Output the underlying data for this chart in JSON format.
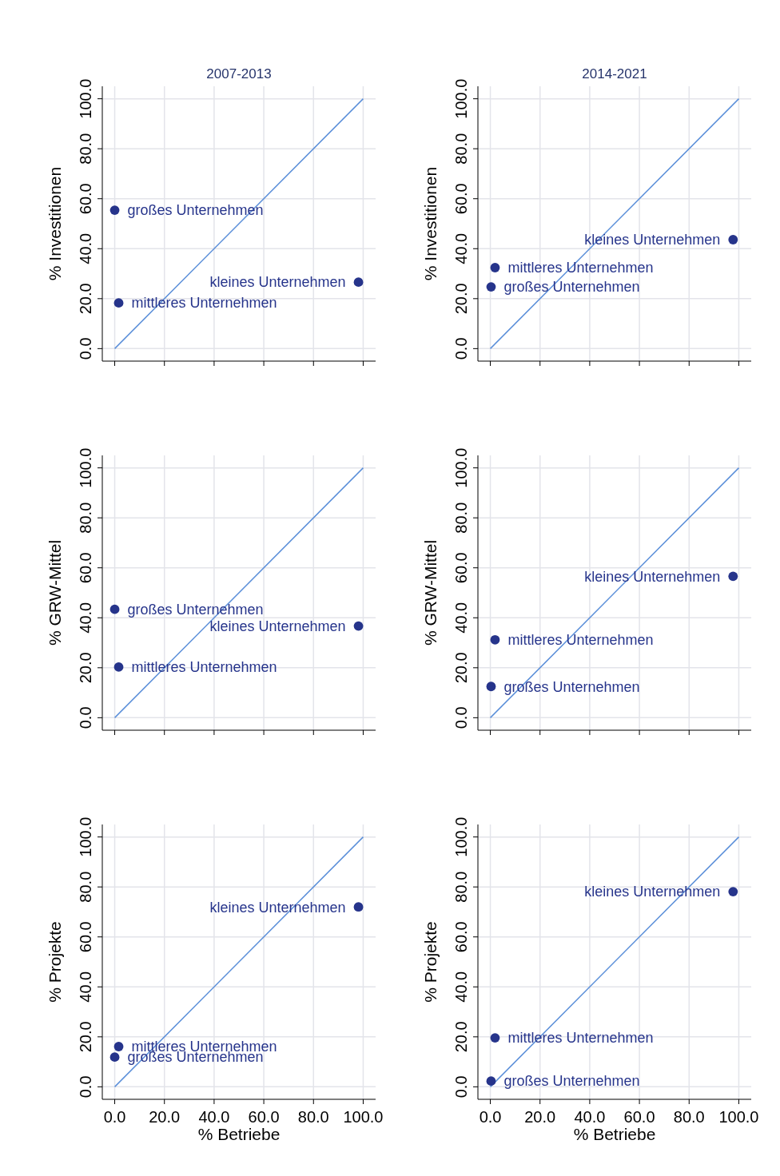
{
  "chart_data": [
    {
      "type": "scatter",
      "title": "2007-2013",
      "ylabel": "% Investitionen",
      "xlim": [
        -5,
        105
      ],
      "ylim": [
        -5,
        105
      ],
      "xticks": [
        {
          "value": 0,
          "label": null
        },
        {
          "value": 20,
          "label": null
        },
        {
          "value": 40,
          "label": null
        },
        {
          "value": 60,
          "label": null
        },
        {
          "value": 80,
          "label": null
        },
        {
          "value": 100,
          "label": null
        }
      ],
      "yticks": [
        {
          "value": 0,
          "label": "0.0"
        },
        {
          "value": 20,
          "label": "20.0"
        },
        {
          "value": 40,
          "label": "40.0"
        },
        {
          "value": 60,
          "label": "60.0"
        },
        {
          "value": 80,
          "label": "80.0"
        },
        {
          "value": 100,
          "label": "100.0"
        }
      ],
      "grid": true,
      "tick_labels": "y",
      "marker": "circle",
      "series": [
        {
          "type": "line",
          "color": "#5b8fd9",
          "x": [
            0,
            100
          ],
          "values": [
            0,
            100
          ],
          "marker": "none"
        },
        {
          "type": "scatter",
          "color": "#26348b",
          "x": [
            0,
            98.1,
            1.6
          ],
          "values": [
            55.4,
            26.6,
            18.3
          ]
        }
      ],
      "annotations": [
        {
          "text": "großes Unternehmen",
          "x": 0,
          "y": 55.4
        },
        {
          "text": "kleines Unternehmen",
          "x": 98.1,
          "y": 26.6
        },
        {
          "text": "mittleres Unternehmen",
          "x": 1.6,
          "y": 18.3
        }
      ]
    },
    {
      "type": "scatter",
      "title": "2014-2021",
      "ylabel": "% Investitionen",
      "xlim": [
        -5,
        105
      ],
      "ylim": [
        -5,
        105
      ],
      "xticks": [
        {
          "value": 0,
          "label": null
        },
        {
          "value": 20,
          "label": null
        },
        {
          "value": 40,
          "label": null
        },
        {
          "value": 60,
          "label": null
        },
        {
          "value": 80,
          "label": null
        },
        {
          "value": 100,
          "label": null
        }
      ],
      "yticks": [
        {
          "value": 0,
          "label": "0.0"
        },
        {
          "value": 20,
          "label": "20.0"
        },
        {
          "value": 40,
          "label": "40.0"
        },
        {
          "value": 60,
          "label": "60.0"
        },
        {
          "value": 80,
          "label": "80.0"
        },
        {
          "value": 100,
          "label": "100.0"
        }
      ],
      "grid": true,
      "tick_labels": "y",
      "marker": "circle",
      "series": [
        {
          "type": "line",
          "color": "#5b8fd9",
          "x": [
            0,
            100
          ],
          "values": [
            0,
            100
          ],
          "marker": "none"
        },
        {
          "type": "scatter",
          "color": "#26348b",
          "x": [
            97.7,
            1.9,
            0.3
          ],
          "values": [
            43.6,
            32.4,
            24.7
          ]
        }
      ],
      "annotations": [
        {
          "text": "kleines Unternehmen",
          "x": 97.7,
          "y": 43.6
        },
        {
          "text": "mittleres Unternehmen",
          "x": 1.9,
          "y": 32.4
        },
        {
          "text": "großes Unternehmen",
          "x": 0.3,
          "y": 24.7
        }
      ]
    },
    {
      "type": "scatter",
      "ylabel": "% GRW-Mittel",
      "xlim": [
        -5,
        105
      ],
      "ylim": [
        -5,
        105
      ],
      "xticks": [
        {
          "value": 0,
          "label": null
        },
        {
          "value": 20,
          "label": null
        },
        {
          "value": 40,
          "label": null
        },
        {
          "value": 60,
          "label": null
        },
        {
          "value": 80,
          "label": null
        },
        {
          "value": 100,
          "label": null
        }
      ],
      "yticks": [
        {
          "value": 0,
          "label": "0.0"
        },
        {
          "value": 20,
          "label": "20.0"
        },
        {
          "value": 40,
          "label": "40.0"
        },
        {
          "value": 60,
          "label": "60.0"
        },
        {
          "value": 80,
          "label": "80.0"
        },
        {
          "value": 100,
          "label": "100.0"
        }
      ],
      "grid": true,
      "tick_labels": "y",
      "marker": "circle",
      "series": [
        {
          "type": "line",
          "color": "#5b8fd9",
          "x": [
            0,
            100
          ],
          "values": [
            0,
            100
          ],
          "marker": "none"
        },
        {
          "type": "scatter",
          "color": "#26348b",
          "x": [
            0,
            98.1,
            1.6
          ],
          "values": [
            43.4,
            36.7,
            20.3
          ]
        }
      ],
      "annotations": [
        {
          "text": "großes Unternehmen",
          "x": 0,
          "y": 43.4
        },
        {
          "text": "kleines Unternehmen",
          "x": 98.1,
          "y": 36.7
        },
        {
          "text": "mittleres Unternehmen",
          "x": 1.6,
          "y": 20.3
        }
      ]
    },
    {
      "type": "scatter",
      "ylabel": "% GRW-Mittel",
      "xlim": [
        -5,
        105
      ],
      "ylim": [
        -5,
        105
      ],
      "xticks": [
        {
          "value": 0,
          "label": null
        },
        {
          "value": 20,
          "label": null
        },
        {
          "value": 40,
          "label": null
        },
        {
          "value": 60,
          "label": null
        },
        {
          "value": 80,
          "label": null
        },
        {
          "value": 100,
          "label": null
        }
      ],
      "yticks": [
        {
          "value": 0,
          "label": "0.0"
        },
        {
          "value": 20,
          "label": "20.0"
        },
        {
          "value": 40,
          "label": "40.0"
        },
        {
          "value": 60,
          "label": "60.0"
        },
        {
          "value": 80,
          "label": "80.0"
        },
        {
          "value": 100,
          "label": "100.0"
        }
      ],
      "grid": true,
      "tick_labels": "y",
      "marker": "circle",
      "series": [
        {
          "type": "line",
          "color": "#5b8fd9",
          "x": [
            0,
            100
          ],
          "values": [
            0,
            100
          ],
          "marker": "none"
        },
        {
          "type": "scatter",
          "color": "#26348b",
          "x": [
            97.7,
            1.9,
            0.3
          ],
          "values": [
            56.6,
            31.2,
            12.5
          ]
        }
      ],
      "annotations": [
        {
          "text": "kleines Unternehmen",
          "x": 97.7,
          "y": 56.6
        },
        {
          "text": "mittleres Unternehmen",
          "x": 1.9,
          "y": 31.2
        },
        {
          "text": "großes Unternehmen",
          "x": 0.3,
          "y": 12.5
        }
      ]
    },
    {
      "type": "scatter",
      "ylabel": "% Projekte",
      "xlabel": "% Betriebe",
      "xlim": [
        -5,
        105
      ],
      "ylim": [
        -5,
        105
      ],
      "xticks": [
        {
          "value": 0,
          "label": "0.0"
        },
        {
          "value": 20,
          "label": "20.0"
        },
        {
          "value": 40,
          "label": "40.0"
        },
        {
          "value": 60,
          "label": "60.0"
        },
        {
          "value": 80,
          "label": "80.0"
        },
        {
          "value": 100,
          "label": "100.0"
        }
      ],
      "yticks": [
        {
          "value": 0,
          "label": "0.0"
        },
        {
          "value": 20,
          "label": "20.0"
        },
        {
          "value": 40,
          "label": "40.0"
        },
        {
          "value": 60,
          "label": "60.0"
        },
        {
          "value": 80,
          "label": "80.0"
        },
        {
          "value": 100,
          "label": "100.0"
        }
      ],
      "grid": true,
      "marker": "circle",
      "series": [
        {
          "type": "line",
          "color": "#5b8fd9",
          "x": [
            0,
            100
          ],
          "values": [
            0,
            100
          ],
          "marker": "none"
        },
        {
          "type": "scatter",
          "color": "#26348b",
          "x": [
            98.1,
            1.6,
            0
          ],
          "values": [
            72.0,
            16.1,
            11.9
          ]
        }
      ],
      "annotations": [
        {
          "text": "kleines Unternehmen",
          "x": 98.1,
          "y": 72.0
        },
        {
          "text": "mittleres Unternehmen",
          "x": 1.6,
          "y": 16.1
        },
        {
          "text": "großes Unternehmen",
          "x": 0,
          "y": 11.9
        }
      ]
    },
    {
      "type": "scatter",
      "ylabel": "% Projekte",
      "xlabel": "% Betriebe",
      "xlim": [
        -5,
        105
      ],
      "ylim": [
        -5,
        105
      ],
      "xticks": [
        {
          "value": 0,
          "label": "0.0"
        },
        {
          "value": 20,
          "label": "20.0"
        },
        {
          "value": 40,
          "label": "40.0"
        },
        {
          "value": 60,
          "label": "60.0"
        },
        {
          "value": 80,
          "label": "80.0"
        },
        {
          "value": 100,
          "label": "100.0"
        }
      ],
      "yticks": [
        {
          "value": 0,
          "label": "0.0"
        },
        {
          "value": 20,
          "label": "20.0"
        },
        {
          "value": 40,
          "label": "40.0"
        },
        {
          "value": 60,
          "label": "60.0"
        },
        {
          "value": 80,
          "label": "80.0"
        },
        {
          "value": 100,
          "label": "100.0"
        }
      ],
      "grid": true,
      "marker": "circle",
      "series": [
        {
          "type": "line",
          "color": "#5b8fd9",
          "x": [
            0,
            100
          ],
          "values": [
            0,
            100
          ],
          "marker": "none"
        },
        {
          "type": "scatter",
          "color": "#26348b",
          "x": [
            97.7,
            1.9,
            0.3
          ],
          "values": [
            78.1,
            19.6,
            2.3
          ]
        }
      ],
      "annotations": [
        {
          "text": "kleines Unternehmen",
          "x": 97.7,
          "y": 78.1
        },
        {
          "text": "mittleres Unternehmen",
          "x": 1.9,
          "y": 19.6
        },
        {
          "text": "großes Unternehmen",
          "x": 0.3,
          "y": 2.3
        }
      ]
    }
  ]
}
